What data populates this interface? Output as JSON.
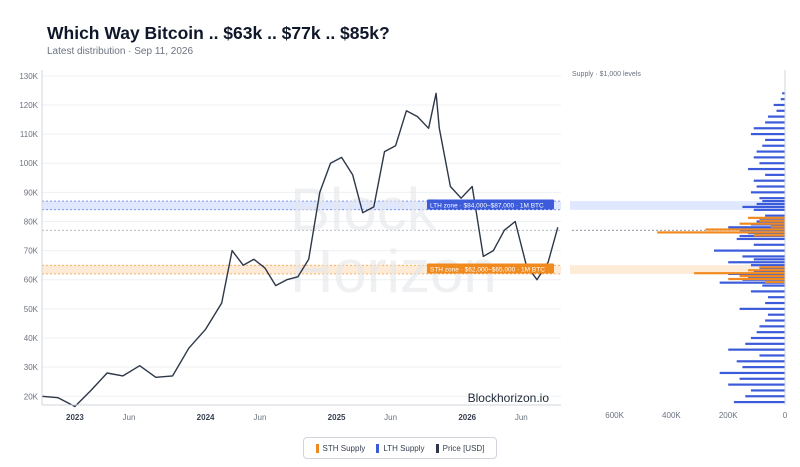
{
  "header": {
    "title": "Which Way Bitcoin .. $63k .. $77k .. $85k?",
    "subtitle": "Latest distribution · Sep 11, 2026"
  },
  "watermark": [
    "Block",
    "Horizon"
  ],
  "credit": "Blockhorizon.io",
  "legend": {
    "sth": "STH Supply",
    "lth": "LTH Supply",
    "price": "Price [USD]"
  },
  "colors": {
    "sth": "#f08a1e",
    "lth": "#3b5bdb",
    "price": "#2d3748",
    "lth_zone": "#dbe4ff",
    "sth_zone": "#fde7d0"
  },
  "chart_data": [
    {
      "type": "line",
      "title": "Which Way Bitcoin .. $63k .. $77k .. $85k?",
      "subtitle": "Latest distribution · Sep 11, 2026",
      "series": [
        {
          "name": "Price [USD]",
          "x": [
            "2022-10-01",
            "2022-11-15",
            "2023-01-01",
            "2023-02-15",
            "2023-04-01",
            "2023-05-15",
            "2023-07-01",
            "2023-08-15",
            "2023-10-01",
            "2023-11-15",
            "2024-01-01",
            "2024-02-15",
            "2024-03-15",
            "2024-04-15",
            "2024-05-15",
            "2024-06-15",
            "2024-07-15",
            "2024-08-15",
            "2024-09-15",
            "2024-10-15",
            "2024-11-15",
            "2024-12-15",
            "2025-01-15",
            "2025-02-15",
            "2025-03-15",
            "2025-04-15",
            "2025-05-15",
            "2025-06-15",
            "2025-07-15",
            "2025-08-15",
            "2025-09-15",
            "2025-10-06",
            "2025-10-15",
            "2025-11-15",
            "2025-12-15",
            "2026-01-15",
            "2026-02-15",
            "2026-03-15",
            "2026-04-15",
            "2026-05-15",
            "2026-06-15",
            "2026-07-15",
            "2026-08-15",
            "2026-09-11"
          ],
          "values": [
            20000,
            19500,
            16500,
            22000,
            28000,
            27000,
            30500,
            26500,
            27000,
            36500,
            43000,
            52000,
            70000,
            65000,
            67000,
            64000,
            58000,
            60000,
            61000,
            67000,
            90000,
            100000,
            102000,
            96000,
            83000,
            85000,
            104000,
            106000,
            118000,
            116000,
            112000,
            124000,
            112000,
            92000,
            88000,
            92000,
            68000,
            70000,
            77000,
            80000,
            65000,
            60000,
            66000,
            78000
          ]
        }
      ],
      "zones": [
        {
          "label": "LTH zone · $84,000–$87,000 · 1M BTC",
          "from": 84000,
          "to": 87000
        },
        {
          "label": "STH zone · $62,000–$65,000 · 1M BTC",
          "from": 62000,
          "to": 65000
        }
      ],
      "reference_line": 77000,
      "x_ticks": [
        "2023",
        "Jun",
        "2024",
        "Jun",
        "2025",
        "Jun",
        "2026",
        "Jun"
      ],
      "y_ticks": [
        "20K",
        "30K",
        "40K",
        "50K",
        "60K",
        "70K",
        "80K",
        "90K",
        "100K",
        "110K",
        "120K",
        "130K"
      ],
      "ylim": [
        17000,
        132000
      ],
      "grid": "horizontal"
    },
    {
      "type": "bar",
      "orientation": "horizontal",
      "title": "Supply · $1,000 levels",
      "x_ticks": [
        "600K",
        "400K",
        "200K",
        "0"
      ],
      "xlim": [
        0,
        750000
      ],
      "price_levels": [
        18000,
        20000,
        22000,
        24000,
        26000,
        28000,
        30000,
        32000,
        34000,
        36000,
        38000,
        40000,
        42000,
        44000,
        46000,
        48000,
        50000,
        52000,
        54000,
        56000,
        58000,
        59000,
        60000,
        61000,
        62000,
        63000,
        64000,
        65000,
        66000,
        67000,
        68000,
        70000,
        72000,
        74000,
        75000,
        76000,
        77000,
        78000,
        79000,
        80000,
        81000,
        82000,
        84000,
        85000,
        86000,
        87000,
        88000,
        90000,
        92000,
        94000,
        96000,
        98000,
        100000,
        102000,
        104000,
        106000,
        108000,
        110000,
        112000,
        114000,
        116000,
        118000,
        120000,
        122000,
        124000
      ],
      "series": [
        {
          "name": "LTH Supply",
          "values": [
            180000,
            140000,
            120000,
            200000,
            160000,
            230000,
            150000,
            170000,
            90000,
            200000,
            140000,
            120000,
            100000,
            90000,
            70000,
            60000,
            160000,
            70000,
            60000,
            120000,
            80000,
            230000,
            150000,
            130000,
            200000,
            110000,
            90000,
            120000,
            200000,
            110000,
            150000,
            250000,
            110000,
            170000,
            160000,
            130000,
            160000,
            200000,
            120000,
            100000,
            90000,
            70000,
            110000,
            150000,
            100000,
            80000,
            90000,
            120000,
            100000,
            110000,
            70000,
            130000,
            90000,
            110000,
            100000,
            80000,
            70000,
            120000,
            110000,
            70000,
            60000,
            30000,
            40000,
            15000,
            10000
          ]
        },
        {
          "name": "STH Supply",
          "values": [
            0,
            0,
            0,
            0,
            0,
            0,
            0,
            0,
            0,
            0,
            0,
            0,
            0,
            0,
            0,
            0,
            0,
            0,
            0,
            0,
            0,
            0,
            70000,
            200000,
            160000,
            320000,
            130000,
            90000,
            0,
            0,
            0,
            0,
            0,
            0,
            0,
            110000,
            450000,
            280000,
            50000,
            160000,
            90000,
            130000,
            0,
            0,
            0,
            0,
            0,
            0,
            0,
            0,
            0,
            0,
            0,
            0,
            0,
            0,
            0,
            0,
            0,
            0,
            0,
            0,
            0,
            0,
            0
          ]
        }
      ]
    }
  ]
}
